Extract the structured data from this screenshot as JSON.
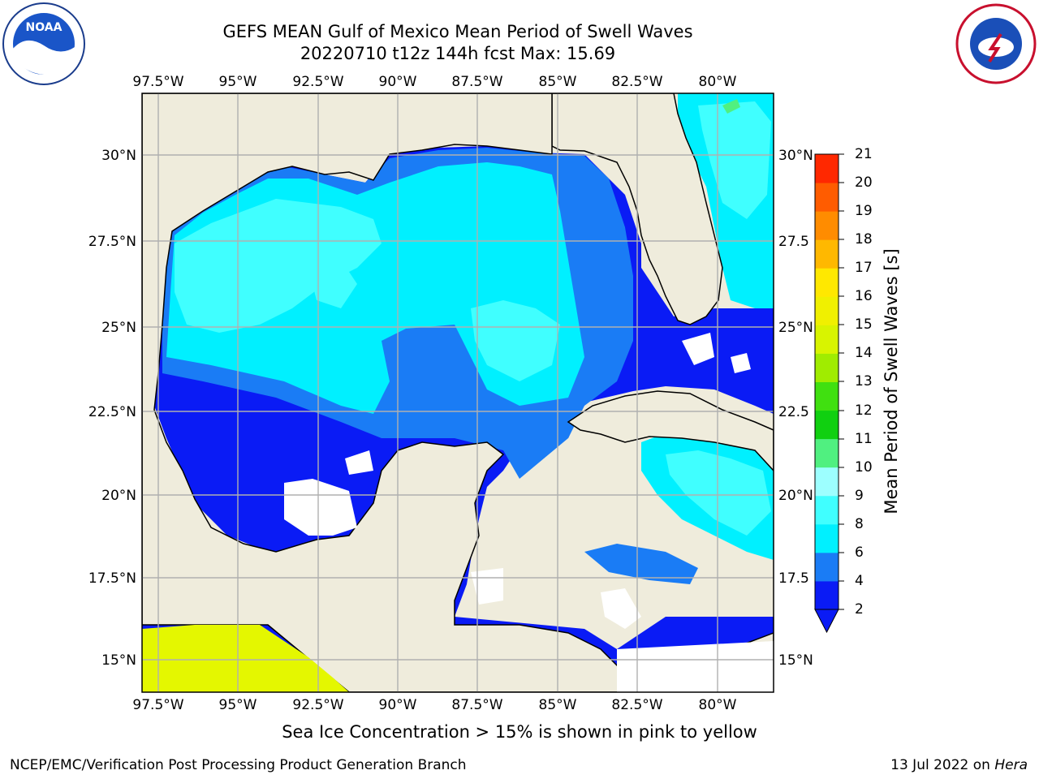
{
  "header": {
    "title_line1": "GEFS MEAN Gulf of Mexico Mean Period of Swell Waves",
    "title_line2": "20220710 t12z 144h fcst   Max: 15.69"
  },
  "logos": {
    "left": "noaa-logo",
    "right": "national-weather-service-logo"
  },
  "map": {
    "lon_ticks": [
      "97.5°W",
      "95°W",
      "92.5°W",
      "90°W",
      "87.5°W",
      "85°W",
      "82.5°W",
      "80°W"
    ],
    "lat_ticks_left": [
      "30°N",
      "27.5°N",
      "25°N",
      "22.5°N",
      "20°N",
      "17.5°N",
      "15°N"
    ],
    "lat_ticks_right": [
      "30°N",
      "27.5",
      "25°N",
      "22.5",
      "20°N",
      "17.5",
      "15°N"
    ],
    "lon_range": [
      -98,
      -79
    ],
    "lat_range": [
      14,
      31.5
    ],
    "land_color": "#efecdc",
    "ice_color": "#e4f700"
  },
  "colorbar": {
    "label": "Mean Period of Swell Waves [s]",
    "ticks": [
      "21",
      "20",
      "19",
      "18",
      "17",
      "16",
      "15",
      "14",
      "13",
      "12",
      "11",
      "10",
      "9",
      "8",
      "6",
      "4",
      "2"
    ],
    "bounds": [
      2,
      4,
      6,
      8,
      9,
      10,
      11,
      12,
      13,
      14,
      15,
      16,
      17,
      18,
      19,
      20,
      21
    ],
    "colors": [
      "#0a1bf5",
      "#1a7cf5",
      "#00f0ff",
      "#40ffff",
      "#9dffff",
      "#50f080",
      "#10d010",
      "#40e010",
      "#a0ec00",
      "#d8f400",
      "#f0f000",
      "#ffe800",
      "#ffb800",
      "#ff8c00",
      "#ff5c00",
      "#ff2800",
      "#ff0000"
    ]
  },
  "caption": "Sea Ice Concentration > 15% is shown in pink to yellow",
  "footer": {
    "left": "NCEP/EMC/Verification Post Processing Product Generation Branch",
    "date": "13 Jul 2022 on",
    "host": "Hera"
  }
}
